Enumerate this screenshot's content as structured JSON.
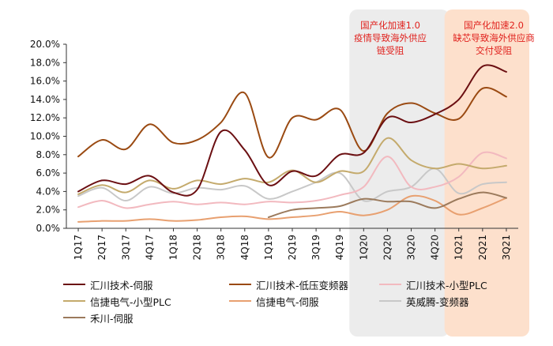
{
  "chart_data": {
    "type": "line",
    "title": "",
    "xlabel": "",
    "ylabel": "",
    "ylim": [
      0,
      20
    ],
    "yticks": [
      "0.0%",
      "2.0%",
      "4.0%",
      "6.0%",
      "8.0%",
      "10.0%",
      "12.0%",
      "14.0%",
      "16.0%",
      "18.0%",
      "20.0%"
    ],
    "categories": [
      "1Q17",
      "2Q17",
      "3Q17",
      "4Q17",
      "1Q18",
      "2Q18",
      "3Q18",
      "4Q18",
      "1Q19",
      "2Q19",
      "3Q19",
      "4Q19",
      "1Q20",
      "2Q20",
      "3Q20",
      "4Q20",
      "1Q21",
      "2Q21",
      "3Q21"
    ],
    "series": [
      {
        "name": "汇川技术-伺服",
        "color": "#6b0f12",
        "values": [
          4.0,
          5.2,
          4.8,
          5.7,
          3.9,
          4.2,
          10.5,
          8.5,
          4.7,
          6.2,
          5.7,
          8.0,
          8.2,
          12.0,
          11.5,
          12.4,
          14.0,
          17.6,
          17.0
        ]
      },
      {
        "name": "汇川技术-低压变频器",
        "color": "#9a4a12",
        "values": [
          7.8,
          9.6,
          8.6,
          11.3,
          9.3,
          9.6,
          11.5,
          14.7,
          7.7,
          12.0,
          11.8,
          12.9,
          8.4,
          12.5,
          13.6,
          12.5,
          11.9,
          15.2,
          14.3
        ]
      },
      {
        "name": "汇川技术-小型PLC",
        "color": "#f2b9bf",
        "values": [
          2.3,
          3.0,
          2.2,
          2.6,
          2.9,
          2.6,
          2.8,
          2.6,
          2.9,
          2.8,
          3.0,
          3.6,
          4.5,
          7.8,
          4.5,
          4.5,
          5.6,
          8.2,
          7.6
        ]
      },
      {
        "name": "信捷电气-小型PLC",
        "color": "#c4aa6c",
        "values": [
          3.7,
          4.7,
          3.9,
          5.2,
          4.3,
          5.2,
          4.8,
          5.4,
          5.0,
          6.3,
          5.0,
          6.2,
          6.2,
          9.8,
          7.4,
          6.5,
          7.0,
          6.5,
          6.8
        ]
      },
      {
        "name": "信捷电气-伺服",
        "color": "#e8a070",
        "values": [
          0.7,
          0.8,
          0.8,
          1.0,
          0.8,
          0.9,
          1.2,
          1.3,
          1.0,
          1.2,
          1.4,
          1.8,
          1.4,
          2.0,
          3.5,
          3.0,
          1.5,
          2.2,
          3.3
        ]
      },
      {
        "name": "英威腾-变频器",
        "color": "#c8c8c8",
        "values": [
          3.5,
          4.4,
          3.0,
          4.5,
          3.8,
          4.4,
          4.2,
          4.6,
          3.2,
          4.0,
          5.0,
          6.0,
          3.0,
          4.0,
          4.5,
          6.5,
          3.8,
          4.8,
          5.0
        ]
      },
      {
        "name": "禾川-伺服",
        "color": "#9b7a5c",
        "values": [
          null,
          null,
          null,
          null,
          null,
          null,
          null,
          null,
          1.2,
          2.0,
          2.2,
          2.4,
          3.2,
          2.9,
          2.9,
          2.2,
          3.2,
          3.9,
          3.3
        ]
      }
    ],
    "shaded_periods": [
      {
        "from": "1Q20",
        "to": "4Q20",
        "label_lines": [
          "国产化加速1.0",
          "疫情导致海外供应",
          "链受阻"
        ],
        "color": "#ececec"
      },
      {
        "from": "1Q21",
        "to": "3Q21",
        "label_lines": [
          "国产化加速2.0",
          "缺芯导致海外供应商",
          "交付受阻"
        ],
        "color": "#fde0cc"
      }
    ],
    "legend_position": "bottom"
  }
}
